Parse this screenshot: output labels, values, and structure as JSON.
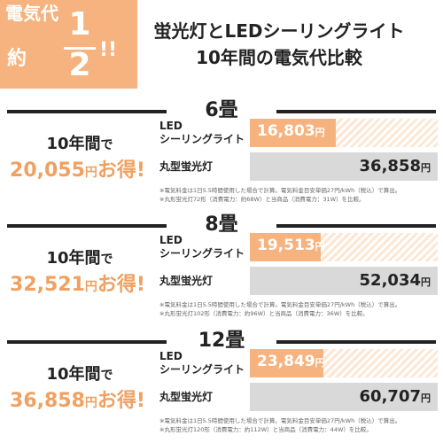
{
  "header": {
    "badge": {
      "top": "電気代",
      "yaku": "約",
      "numerator": "1",
      "denominator": "2",
      "bang": "!!"
    },
    "title_line1": "蛍光灯とLEDシーリングライト",
    "title_line2": "10年間の電気代比較"
  },
  "colors": {
    "accent": "#f6b37f",
    "savings_text": "#f0a060",
    "fluorescent_bar": "#d9d9d9"
  },
  "labels": {
    "led": "LED",
    "led_sub": "シーリングライト",
    "fluorescent": "丸型蛍光灯",
    "savings_prefix": "10年間",
    "savings_de": "で",
    "yen": "円",
    "toku": "お得!"
  },
  "sections": [
    {
      "title": "6畳",
      "savings": "20,055",
      "led_value": "16,803",
      "led_value_num": 16803,
      "fl_value": "36,858",
      "fl_value_num": 36858,
      "note1": "※電気料金は1日5.5時間使用した場合で計算。電気料金目安単価27円/kWh（税込）で算出。",
      "note2": "※丸形蛍光灯72形（消費電力：約68W）と当商品（消費電力：31W）を比較。"
    },
    {
      "title": "8畳",
      "savings": "32,521",
      "led_value": "19,513",
      "led_value_num": 19513,
      "fl_value": "52,034",
      "fl_value_num": 52034,
      "note1": "※電気料金は1日5.5時間使用した場合で計算。電気料金目安単価27円/kWh（税込）で算出。",
      "note2": "※丸形蛍光灯102形（消費電力：約96W）と当商品（消費電力：36W）を比較。"
    },
    {
      "title": "12畳",
      "savings": "36,858",
      "led_value": "23,849",
      "led_value_num": 23849,
      "fl_value": "60,707",
      "fl_value_num": 60707,
      "note1": "※電気料金は1日5.5時間使用した場合で計算。電気料金目安単価27円/kWh（税込）で算出。",
      "note2": "※丸形蛍光灯120形（消費電力：約112W）と当商品（消費電力：44W）を比較。"
    }
  ]
}
